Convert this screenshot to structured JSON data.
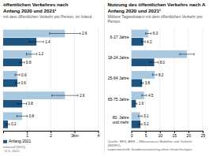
{
  "chart_data": [
    {
      "type": "bar",
      "orientation": "horizontal",
      "title": "öffentlichen Verkehres nach\nAnfang 2020 und 2021¹",
      "subtitle": "mit dem öffentlichen Verkehr pro Person, im Inland",
      "categories": [
        null,
        null,
        null,
        null,
        null
      ],
      "series": [
        {
          "color": "#a8c8e0",
          "values": [
            2.6,
            1.2,
            0.6,
            2.6,
            0.8
          ],
          "errors": [
            0.65,
            0.22,
            0.1,
            0.55,
            0.22
          ]
        },
        {
          "name": "Anfang 2021",
          "color": "#1e5480",
          "values": [
            1.4,
            0.8,
            0.6,
            0.8,
            0.2
          ],
          "errors": [
            0.3,
            0.1,
            0.08,
            0.18,
            0.07
          ]
        }
      ],
      "xlim": [
        0,
        4
      ],
      "xticks": [
        {
          "value": 0,
          "label": null
        },
        1,
        2,
        {
          "value": 3,
          "label": "3km"
        },
        4
      ],
      "grid": true,
      "legend": "lower left",
      "data_labels": true,
      "annotations": [
        "Intervall (95%)",
        "~6.5. 2021"
      ]
    },
    {
      "type": "bar",
      "orientation": "horizontal",
      "title": "Nutzung des öffentlichen Verkehrs nach A\nAnfang 2020 und 2021¹",
      "subtitle": "Mittlere Tagesdistanz mit dem öffentlichen Verkehr pro Person",
      "categories": [
        "6-17 Jahre",
        "18-24 Jahre",
        "25-64 Jahre",
        "65-75 Jahre",
        "80. Jahre\nund mehr"
      ],
      "series": [
        {
          "color": "#a8c8e0",
          "values": [
            6.0,
            19.5,
            8.2,
            4.5,
            3.1
          ],
          "value_labels": [
            "6.0",
            null,
            "8.2",
            "4.5",
            "3.1"
          ],
          "errors": [
            1.0,
            2.5,
            0.75,
            0.85,
            0.65
          ]
        },
        {
          "color": "#1e5480",
          "values": [
            4.2,
            8.0,
            3.8,
            1.6,
            3.2
          ],
          "value_labels": [
            "4.2",
            "8.0",
            "3.8",
            "1.6",
            "3.2"
          ],
          "errors": [
            0.65,
            1.4,
            0.38,
            0.38,
            0.55
          ]
        }
      ],
      "xlim": [
        0,
        25
      ],
      "xticks": [
        0,
        5,
        10,
        15,
        20,
        25
      ],
      "grid": true,
      "data_labels": true,
      "annotations": [
        "Quelle: BFS, ARE – Mikrozensus Mobilität und Verkehr (MZMV),\nexperimentelle Sonderauswertung ohne Gewichtungen"
      ]
    }
  ]
}
